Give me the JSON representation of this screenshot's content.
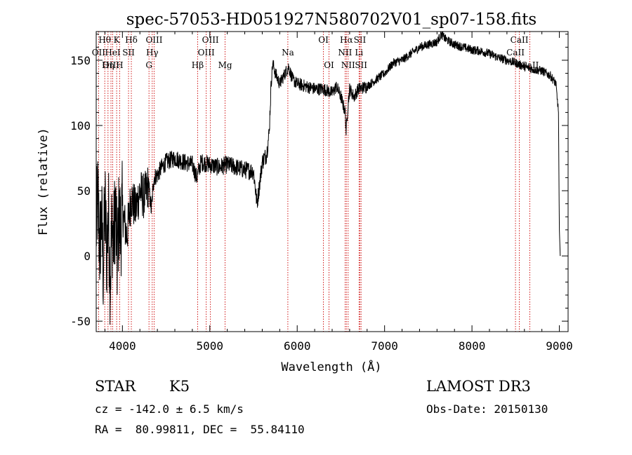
{
  "chart_data": {
    "type": "line",
    "title": "spec-57053-HD051927N580702V01_sp07-158.fits",
    "xlabel": "Wavelength (Å)",
    "ylabel": "Flux (relative)",
    "xlim": [
      3700,
      9100
    ],
    "ylim": [
      -58,
      172
    ],
    "x_ticks": [
      4000,
      5000,
      6000,
      7000,
      8000,
      9000
    ],
    "y_ticks": [
      -50,
      0,
      50,
      100,
      150
    ],
    "line_color": "#000000",
    "marker_color": "#cc0000",
    "series": [
      {
        "name": "flux",
        "anchors": [
          [
            3700,
            20
          ],
          [
            3720,
            45
          ],
          [
            3740,
            5
          ],
          [
            3760,
            30
          ],
          [
            3780,
            -10
          ],
          [
            3800,
            40
          ],
          [
            3820,
            0
          ],
          [
            3840,
            35
          ],
          [
            3860,
            -20
          ],
          [
            3880,
            25
          ],
          [
            3900,
            10
          ],
          [
            3920,
            40
          ],
          [
            3940,
            -5
          ],
          [
            3960,
            30
          ],
          [
            3980,
            20
          ],
          [
            4000,
            35
          ],
          [
            4050,
            15
          ],
          [
            4100,
            45
          ],
          [
            4150,
            35
          ],
          [
            4200,
            50
          ],
          [
            4250,
            45
          ],
          [
            4300,
            55
          ],
          [
            4330,
            35
          ],
          [
            4360,
            60
          ],
          [
            4400,
            62
          ],
          [
            4450,
            68
          ],
          [
            4500,
            72
          ],
          [
            4600,
            75
          ],
          [
            4700,
            72
          ],
          [
            4800,
            70
          ],
          [
            4850,
            60
          ],
          [
            4900,
            72
          ],
          [
            5000,
            70
          ],
          [
            5100,
            68
          ],
          [
            5200,
            70
          ],
          [
            5300,
            68
          ],
          [
            5400,
            66
          ],
          [
            5500,
            65
          ],
          [
            5540,
            40
          ],
          [
            5560,
            50
          ],
          [
            5600,
            72
          ],
          [
            5650,
            78
          ],
          [
            5680,
            95
          ],
          [
            5700,
            130
          ],
          [
            5720,
            148
          ],
          [
            5750,
            140
          ],
          [
            5800,
            132
          ],
          [
            5900,
            145
          ],
          [
            5950,
            135
          ],
          [
            6000,
            132
          ],
          [
            6100,
            130
          ],
          [
            6200,
            128
          ],
          [
            6300,
            128
          ],
          [
            6400,
            125
          ],
          [
            6450,
            130
          ],
          [
            6500,
            122
          ],
          [
            6550,
            110
          ],
          [
            6560,
            95
          ],
          [
            6580,
            115
          ],
          [
            6600,
            128
          ],
          [
            6650,
            122
          ],
          [
            6700,
            128
          ],
          [
            6800,
            130
          ],
          [
            6900,
            135
          ],
          [
            7000,
            140
          ],
          [
            7100,
            148
          ],
          [
            7200,
            150
          ],
          [
            7300,
            155
          ],
          [
            7400,
            160
          ],
          [
            7500,
            162
          ],
          [
            7600,
            164
          ],
          [
            7650,
            170
          ],
          [
            7700,
            166
          ],
          [
            7800,
            162
          ],
          [
            7900,
            160
          ],
          [
            8000,
            158
          ],
          [
            8100,
            157
          ],
          [
            8200,
            155
          ],
          [
            8300,
            152
          ],
          [
            8400,
            150
          ],
          [
            8500,
            148
          ],
          [
            8600,
            145
          ],
          [
            8700,
            143
          ],
          [
            8800,
            142
          ],
          [
            8900,
            138
          ],
          [
            8960,
            132
          ],
          [
            8990,
            110
          ],
          [
            9000,
            20
          ],
          [
            9010,
            0
          ]
        ]
      }
    ],
    "line_markers": [
      {
        "name": "Hθ",
        "wavelength": 3798,
        "tier": 0
      },
      {
        "name": "OII",
        "wavelength": 3727,
        "tier": 1
      },
      {
        "name": "OIII",
        "wavelength": 3869,
        "tier": 2
      },
      {
        "name": "K",
        "wavelength": 3934,
        "tier": 0
      },
      {
        "name": "HeI",
        "wavelength": 3889,
        "tier": 1
      },
      {
        "name": "Hη",
        "wavelength": 3835,
        "tier": 2
      },
      {
        "name": "Hδ",
        "wavelength": 4102,
        "tier": 0
      },
      {
        "name": "SII",
        "wavelength": 4070,
        "tier": 1
      },
      {
        "name": "H",
        "wavelength": 3968,
        "tier": 2
      },
      {
        "name": "OIII",
        "wavelength": 4363,
        "tier": 0
      },
      {
        "name": "Hγ",
        "wavelength": 4341,
        "tier": 1
      },
      {
        "name": "G",
        "wavelength": 4304,
        "tier": 2
      },
      {
        "name": "OIII",
        "wavelength": 5007,
        "tier": 0
      },
      {
        "name": "OIII",
        "wavelength": 4959,
        "tier": 1
      },
      {
        "name": "Hβ",
        "wavelength": 4861,
        "tier": 2
      },
      {
        "name": "Mg",
        "wavelength": 5175,
        "tier": 2
      },
      {
        "name": "Na",
        "wavelength": 5893,
        "tier": 1
      },
      {
        "name": "OI",
        "wavelength": 6300,
        "tier": 0
      },
      {
        "name": "OI",
        "wavelength": 6364,
        "tier": 2
      },
      {
        "name": "Hα",
        "wavelength": 6563,
        "tier": 0
      },
      {
        "name": "NII",
        "wavelength": 6548,
        "tier": 1
      },
      {
        "name": "NII",
        "wavelength": 6583,
        "tier": 2
      },
      {
        "name": "SII",
        "wavelength": 6717,
        "tier": 0
      },
      {
        "name": "Li",
        "wavelength": 6708,
        "tier": 1
      },
      {
        "name": "SII",
        "wavelength": 6731,
        "tier": 2
      },
      {
        "name": "CaII",
        "wavelength": 8542,
        "tier": 0
      },
      {
        "name": "CaII",
        "wavelength": 8498,
        "tier": 1
      },
      {
        "name": "CaII",
        "wavelength": 8662,
        "tier": 2
      }
    ]
  },
  "info": {
    "object_class": "STAR",
    "subclass": "K5",
    "survey": "LAMOST DR3",
    "redshift": "cz = -142.0 ± 6.5 km/s",
    "obs_date": "Obs-Date: 20150130",
    "coords": "RA =  80.99811, DEC =  55.84110"
  }
}
